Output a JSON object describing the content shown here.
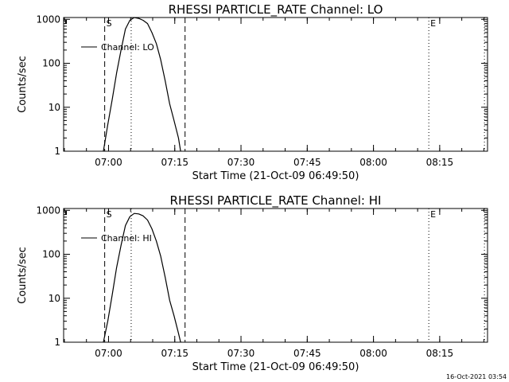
{
  "footer": {
    "timestamp": "16-Oct-2021 03:54"
  },
  "chart_data": [
    {
      "type": "line",
      "title": "RHESSI PARTICLE_RATE Channel: LO",
      "xlabel": "Start Time (21-Oct-09 06:49:50)",
      "ylabel": "Counts/sec",
      "yscale": "log",
      "ylim": [
        1,
        1100
      ],
      "xlim_minutes_after_start": [
        0,
        96
      ],
      "x_tick_labels": [
        "07:00",
        "07:15",
        "07:30",
        "07:45",
        "08:00",
        "08:15"
      ],
      "y_tick_labels": [
        "1",
        "10",
        "100",
        "1000"
      ],
      "legend": {
        "entries": [
          "Channel: LO"
        ],
        "placement": "top-left"
      },
      "markers": {
        "start_label": "S",
        "end_label": "E"
      },
      "series": [
        {
          "name": "Channel: LO",
          "x_time": [
            "06:58:50",
            "06:59:50",
            "07:00:50",
            "07:01:50",
            "07:02:50",
            "07:03:50",
            "07:04:50",
            "07:05:50",
            "07:06:50",
            "07:07:50",
            "07:08:50",
            "07:09:50",
            "07:10:50",
            "07:11:50",
            "07:12:50",
            "07:13:50",
            "07:14:50",
            "07:15:50",
            "07:16:20"
          ],
          "y": [
            1,
            4,
            15,
            60,
            200,
            600,
            950,
            1100,
            1050,
            950,
            800,
            500,
            280,
            120,
            40,
            12,
            5,
            2,
            1
          ]
        }
      ]
    },
    {
      "type": "line",
      "title": "RHESSI PARTICLE_RATE Channel: HI",
      "xlabel": "Start Time (21-Oct-09 06:49:50)",
      "ylabel": "Counts/sec",
      "yscale": "log",
      "ylim": [
        1,
        1100
      ],
      "xlim_minutes_after_start": [
        0,
        96
      ],
      "x_tick_labels": [
        "07:00",
        "07:15",
        "07:30",
        "07:45",
        "08:00",
        "08:15"
      ],
      "y_tick_labels": [
        "1",
        "10",
        "100",
        "1000"
      ],
      "legend": {
        "entries": [
          "Channel: HI"
        ],
        "placement": "top-left"
      },
      "markers": {
        "start_label": "S",
        "end_label": "E"
      },
      "series": [
        {
          "name": "Channel: HI",
          "x_time": [
            "06:58:50",
            "06:59:50",
            "07:00:50",
            "07:01:50",
            "07:02:50",
            "07:03:50",
            "07:04:50",
            "07:05:50",
            "07:06:50",
            "07:07:50",
            "07:08:50",
            "07:09:50",
            "07:10:50",
            "07:11:50",
            "07:12:50",
            "07:13:50",
            "07:14:50",
            "07:15:50",
            "07:16:20"
          ],
          "y": [
            1,
            3,
            12,
            50,
            160,
            450,
            720,
            850,
            830,
            750,
            600,
            380,
            200,
            90,
            30,
            9,
            4,
            1.6,
            1
          ]
        }
      ]
    }
  ]
}
